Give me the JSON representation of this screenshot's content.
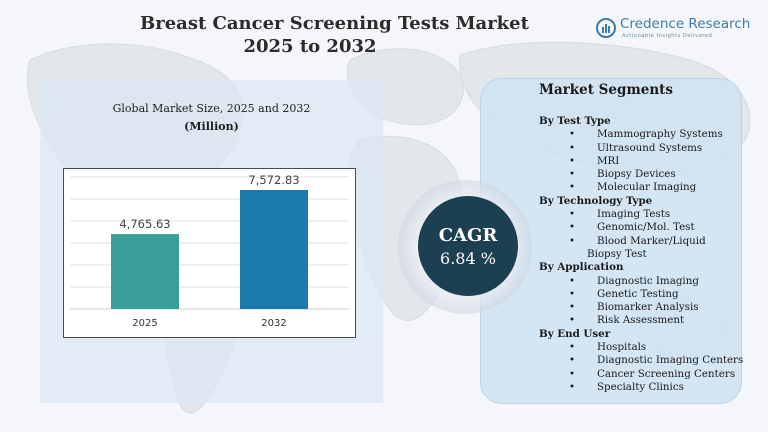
{
  "header": {
    "title_line1": "Breast Cancer Screening Tests Market",
    "title_line2": "2025 to 2032"
  },
  "logo": {
    "name": "Credence Research",
    "tagline": "Actionable Insights Delivered"
  },
  "colors": {
    "bar_2025": "#3a9e9b",
    "bar_2032": "#1a7aab",
    "cagr_bg": "#1d3f52",
    "panel_left": "#dbe7f4",
    "panel_right": "#d0e3f2"
  },
  "chart_data": {
    "type": "bar",
    "title": "Global Market Size, 2025 and 2032",
    "subtitle": "(Million)",
    "categories": [
      "2025",
      "2032"
    ],
    "values": [
      4765.63,
      7572.83
    ],
    "value_labels": [
      "4,765.63",
      "7,572.83"
    ],
    "ylim": [
      0,
      8400
    ],
    "grid": true,
    "xlabel": "",
    "ylabel": ""
  },
  "cagr": {
    "label": "CAGR",
    "value": "6.84 %"
  },
  "segments": {
    "title": "Market Segments",
    "groups": [
      {
        "heading": "By Test Type",
        "items": [
          "Mammography Systems",
          "Ultrasound Systems",
          "MRI",
          "Biopsy Devices",
          "Molecular Imaging"
        ]
      },
      {
        "heading": "By Technology Type",
        "items": [
          "Imaging Tests",
          "Genomic/Mol. Test",
          "Blood Marker/Liquid Biopsy Test"
        ]
      },
      {
        "heading": "By Application",
        "items": [
          "Diagnostic Imaging",
          "Genetic Testing",
          "Biomarker Analysis",
          "Risk Assessment"
        ]
      },
      {
        "heading": "By End User",
        "items": [
          "Hospitals",
          "Diagnostic Imaging Centers",
          "Cancer Screening Centers",
          "Specialty Clinics"
        ]
      }
    ],
    "bullet": "•"
  }
}
